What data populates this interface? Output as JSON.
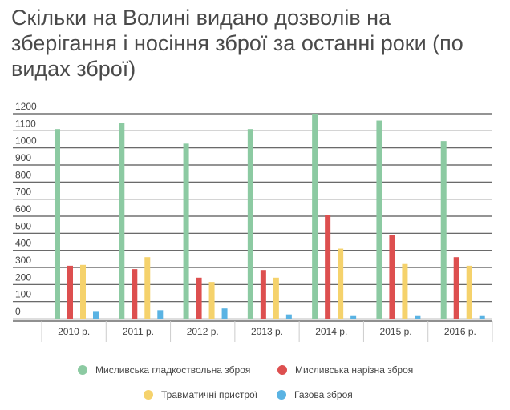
{
  "title": "Скільки на Волині видано дозволів на зберігання і носіння зброї за останні роки (по видах зброї)",
  "chart_data": {
    "type": "bar",
    "title": "Скільки на Волині видано дозволів на зберігання і носіння зброї за останні роки (по видах зброї)",
    "categories": [
      "2010 р.",
      "2011 р.",
      "2012 р.",
      "2013 р.",
      "2014 р.",
      "2015 р.",
      "2016 р."
    ],
    "series": [
      {
        "name": "Мисливська гладкоствольна зброя",
        "color": "#8ccaa2",
        "values": [
          1110,
          1145,
          1025,
          1110,
          1200,
          1160,
          1040
        ]
      },
      {
        "name": "Мисливська нарізна зброя",
        "color": "#dd4f4f",
        "values": [
          310,
          290,
          240,
          285,
          605,
          490,
          360
        ]
      },
      {
        "name": "Травматичні пристрої",
        "color": "#f5d26c",
        "values": [
          315,
          360,
          215,
          240,
          410,
          320,
          310
        ]
      },
      {
        "name": "Газова зброя",
        "color": "#5ab3e3",
        "values": [
          45,
          50,
          60,
          25,
          20,
          20,
          20
        ]
      }
    ],
    "yticks": [
      0,
      100,
      200,
      300,
      400,
      500,
      600,
      700,
      800,
      900,
      1000,
      1100,
      1200
    ],
    "ylim": [
      0,
      1200
    ],
    "xlabel": "",
    "ylabel": "",
    "grid": true,
    "legend_position": "bottom"
  }
}
